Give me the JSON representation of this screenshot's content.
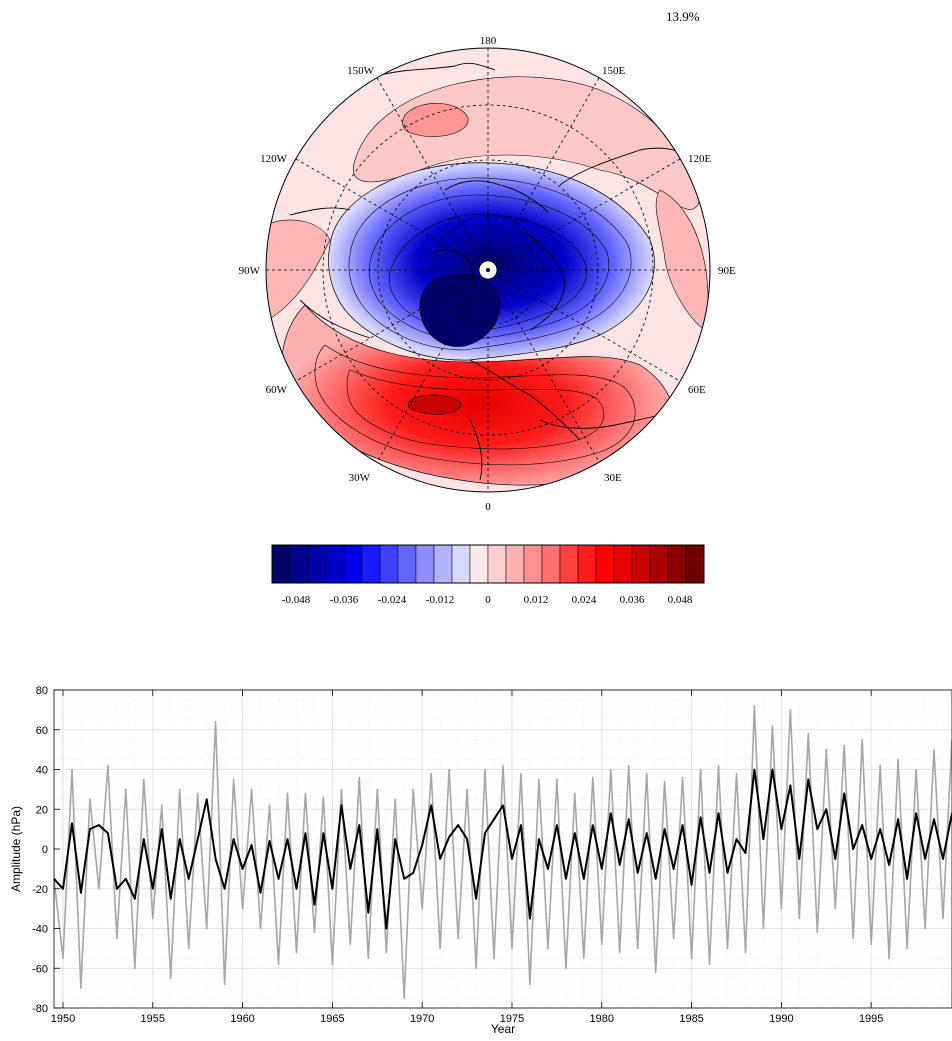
{
  "variance_label": "13.9%",
  "chart_data": [
    {
      "type": "heatmap",
      "projection": "polar-stereographic-north",
      "field": "pattern",
      "longitude_labels": {
        "top": "180",
        "upper_right": "150E",
        "right_upper": "120E",
        "right": "90E",
        "right_lower": "60E",
        "lower_right": "30E",
        "bottom": "0",
        "lower_left": "30W",
        "left_lower": "60W",
        "left": "90W",
        "left_upper": "120W",
        "upper_left": "150W"
      },
      "colorbar": {
        "range": [
          -0.054,
          0.054
        ],
        "colors": [
          "#00006a",
          "#00008c",
          "#0000a8",
          "#0000c8",
          "#0000e6",
          "#1a1aff",
          "#4040ff",
          "#6666ff",
          "#8c8cff",
          "#b2b2ff",
          "#d8d8ff",
          "#fbe9ea",
          "#fdd0d0",
          "#ffb0b0",
          "#ff9090",
          "#ff6e6e",
          "#ff4040",
          "#ff1a1a",
          "#ff0000",
          "#e60000",
          "#c80000",
          "#aa0000",
          "#8c0000",
          "#700000"
        ],
        "tick_labels": [
          "-0.048",
          "-0.036",
          "-0.024",
          "-0.012",
          "0",
          "0.012",
          "0.024",
          "0.036",
          "0.048"
        ]
      }
    },
    {
      "type": "line",
      "xlabel": "Year",
      "ylabel": "Amplitude (hPa)",
      "xlim": [
        1949.5,
        1999.5
      ],
      "ylim": [
        -80,
        80
      ],
      "x_ticks": [
        "1950",
        "1955",
        "1960",
        "1965",
        "1970",
        "1975",
        "1980",
        "1985",
        "1990",
        "1995"
      ],
      "y_ticks": [
        "80",
        "60",
        "40",
        "20",
        "0",
        "-20",
        "-40",
        "-60",
        "-80"
      ],
      "series": [
        {
          "role": "monthly",
          "color": "#a6a6a6",
          "x": [
            1949.5,
            1950.0,
            1950.5,
            1951.0,
            1951.5,
            1952.0,
            1952.5,
            1953.0,
            1953.5,
            1954.0,
            1954.5,
            1955.0,
            1955.5,
            1956.0,
            1956.5,
            1957.0,
            1957.5,
            1958.0,
            1958.5,
            1959.0,
            1959.5,
            1960.0,
            1960.5,
            1961.0,
            1961.5,
            1962.0,
            1962.5,
            1963.0,
            1963.5,
            1964.0,
            1964.5,
            1965.0,
            1965.5,
            1966.0,
            1966.5,
            1967.0,
            1967.5,
            1968.0,
            1968.5,
            1969.0,
            1969.5,
            1970.0,
            1970.5,
            1971.0,
            1971.5,
            1972.0,
            1972.5,
            1973.0,
            1973.5,
            1974.0,
            1974.5,
            1975.0,
            1975.5,
            1976.0,
            1976.5,
            1977.0,
            1977.5,
            1978.0,
            1978.5,
            1979.0,
            1979.5,
            1980.0,
            1980.5,
            1981.0,
            1981.5,
            1982.0,
            1982.5,
            1983.0,
            1983.5,
            1984.0,
            1984.5,
            1985.0,
            1985.5,
            1986.0,
            1986.5,
            1987.0,
            1987.5,
            1988.0,
            1988.5,
            1989.0,
            1989.5,
            1990.0,
            1990.5,
            1991.0,
            1991.5,
            1992.0,
            1992.5,
            1993.0,
            1993.5,
            1994.0,
            1994.5,
            1995.0,
            1995.5,
            1996.0,
            1996.5,
            1997.0,
            1997.5,
            1998.0,
            1998.5,
            1999.0,
            1999.5
          ],
          "values": [
            -15,
            -55,
            40,
            -70,
            25,
            -20,
            42,
            -45,
            30,
            -60,
            35,
            -35,
            22,
            -65,
            30,
            -50,
            28,
            -40,
            64,
            -68,
            35,
            -30,
            30,
            -40,
            22,
            -58,
            28,
            -52,
            28,
            -42,
            26,
            -58,
            30,
            -48,
            36,
            -55,
            30,
            -52,
            25,
            -75,
            30,
            -30,
            38,
            -50,
            40,
            -45,
            30,
            -60,
            40,
            -55,
            42,
            -50,
            38,
            -68,
            35,
            -50,
            35,
            -60,
            28,
            -55,
            36,
            -48,
            40,
            -52,
            42,
            -50,
            38,
            -62,
            34,
            -45,
            36,
            -55,
            40,
            -58,
            42,
            -50,
            38,
            -52,
            72,
            -40,
            62,
            -30,
            70,
            -35,
            58,
            -42,
            50,
            -30,
            52,
            -45,
            55,
            -48,
            42,
            -55,
            45,
            -50,
            40,
            -40,
            50,
            -35,
            55
          ]
        },
        {
          "role": "smoothed",
          "color": "#000000",
          "x": [
            1949.5,
            1950.0,
            1950.5,
            1951.0,
            1951.5,
            1952.0,
            1952.5,
            1953.0,
            1953.5,
            1954.0,
            1954.5,
            1955.0,
            1955.5,
            1956.0,
            1956.5,
            1957.0,
            1957.5,
            1958.0,
            1958.5,
            1959.0,
            1959.5,
            1960.0,
            1960.5,
            1961.0,
            1961.5,
            1962.0,
            1962.5,
            1963.0,
            1963.5,
            1964.0,
            1964.5,
            1965.0,
            1965.5,
            1966.0,
            1966.5,
            1967.0,
            1967.5,
            1968.0,
            1968.5,
            1969.0,
            1969.5,
            1970.0,
            1970.5,
            1971.0,
            1971.5,
            1972.0,
            1972.5,
            1973.0,
            1973.5,
            1974.0,
            1974.5,
            1975.0,
            1975.5,
            1976.0,
            1976.5,
            1977.0,
            1977.5,
            1978.0,
            1978.5,
            1979.0,
            1979.5,
            1980.0,
            1980.5,
            1981.0,
            1981.5,
            1982.0,
            1982.5,
            1983.0,
            1983.5,
            1984.0,
            1984.5,
            1985.0,
            1985.5,
            1986.0,
            1986.5,
            1987.0,
            1987.5,
            1988.0,
            1988.5,
            1989.0,
            1989.5,
            1990.0,
            1990.5,
            1991.0,
            1991.5,
            1992.0,
            1992.5,
            1993.0,
            1993.5,
            1994.0,
            1994.5,
            1995.0,
            1995.5,
            1996.0,
            1996.5,
            1997.0,
            1997.5,
            1998.0,
            1998.5,
            1999.0,
            1999.5
          ],
          "values": [
            -15,
            -20,
            13,
            -22,
            10,
            12,
            8,
            -20,
            -15,
            -25,
            5,
            -20,
            10,
            -25,
            5,
            -15,
            5,
            25,
            -5,
            -20,
            5,
            -10,
            2,
            -22,
            4,
            -15,
            5,
            -20,
            8,
            -28,
            8,
            -20,
            22,
            -10,
            12,
            -32,
            10,
            -40,
            5,
            -15,
            -12,
            2,
            22,
            -5,
            6,
            12,
            5,
            -25,
            8,
            15,
            22,
            -5,
            12,
            -35,
            5,
            -10,
            12,
            -15,
            8,
            -15,
            12,
            -10,
            18,
            -8,
            15,
            -12,
            8,
            -15,
            10,
            -10,
            12,
            -18,
            16,
            -12,
            18,
            -12,
            5,
            -2,
            40,
            5,
            40,
            10,
            32,
            -5,
            35,
            10,
            20,
            -5,
            28,
            0,
            12,
            -5,
            10,
            -8,
            15,
            -15,
            18,
            -5,
            15,
            -5,
            18
          ]
        }
      ]
    }
  ]
}
